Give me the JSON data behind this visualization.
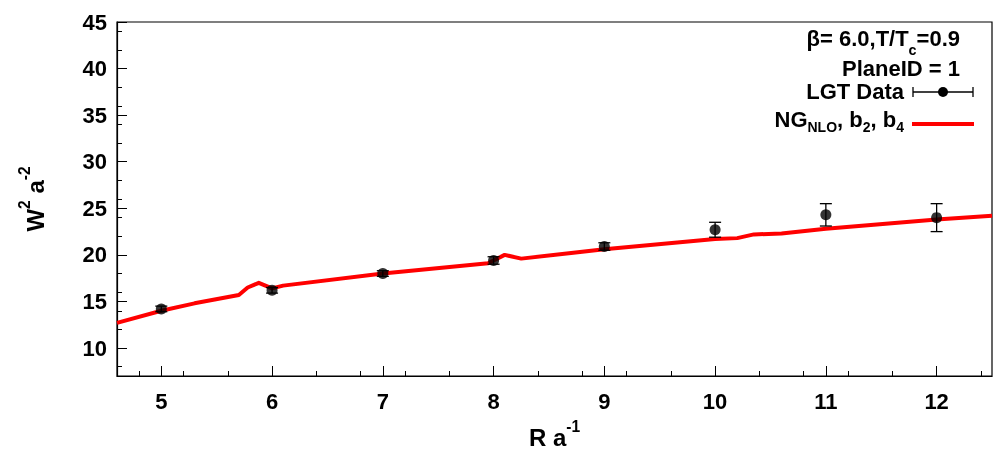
{
  "chart_data": {
    "type": "line",
    "xlabel": "R a$^{-1}$",
    "ylabel": "W$^{2}$ a$^{-2}$",
    "annotations": [
      "β= 6.0,T/T$_{c}$=0.9",
      "PlaneID = 1"
    ],
    "xlim": [
      4.6,
      12.5
    ],
    "xticks": [
      5,
      6,
      7,
      8,
      9,
      10,
      11,
      12
    ],
    "ylim": [
      7,
      45
    ],
    "yticks": [
      10,
      15,
      20,
      25,
      30,
      35,
      40,
      45
    ],
    "legend": "top right",
    "series": [
      {
        "name": "LGT Data",
        "type": "scatter",
        "marker": "circle",
        "color": "#000000",
        "x": [
          5,
          6,
          7,
          8,
          9,
          10,
          11,
          12
        ],
        "values": [
          14.2,
          16.2,
          18.0,
          19.4,
          20.9,
          22.7,
          24.3,
          24.0
        ],
        "errors": [
          0.3,
          0.3,
          0.3,
          0.4,
          0.4,
          0.8,
          1.2,
          1.5
        ]
      },
      {
        "name": "NG$_{NLO}$, b$_{2}$, b$_{4}$",
        "color": "#ff0000",
        "x": [
          4.6,
          5.0,
          5.3,
          5.7,
          5.78,
          5.88,
          6.0,
          6.1,
          7.0,
          7.95,
          8.1,
          8.25,
          9.0,
          10.0,
          10.2,
          10.35,
          10.6,
          11.0,
          12.0,
          12.5
        ],
        "values": [
          12.7,
          14.0,
          14.8,
          15.7,
          16.5,
          17.0,
          16.4,
          16.7,
          18.0,
          19.1,
          20.0,
          19.6,
          20.6,
          21.7,
          21.8,
          22.2,
          22.3,
          22.8,
          23.8,
          24.2
        ]
      }
    ]
  }
}
